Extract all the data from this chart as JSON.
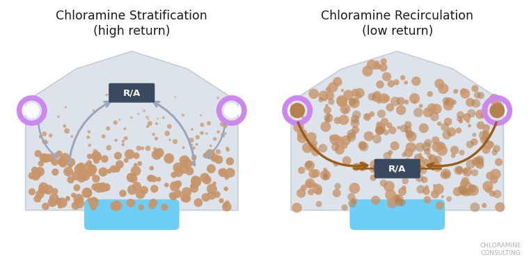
{
  "bg_color": "#ffffff",
  "building_color": "#dde3ea",
  "building_edge_color": "#c5ccd6",
  "pool_color": "#6dcff6",
  "dot_color_light": "#c8956a",
  "dot_color_mid": "#b5804e",
  "arrow_color_strat": "#9aa5bc",
  "arrow_color_recirc": "#9b5e1a",
  "vent_color": "#cc88ee",
  "vent_inner_color_left": "#ffffff",
  "vent_inner_color_right": "#c8956a",
  "RA_box_color": "#3a4a5e",
  "RA_text_color": "#ffffff",
  "title1_line1": "Chloramine Stratification",
  "title1_line2": "(high return)",
  "title2_line1": "Chloramine Recirculation",
  "title2_line2": "(low return)",
  "watermark_line1": "CHLORAMINE",
  "watermark_line2": "CONSULTING",
  "title_fontsize": 12.5,
  "watermark_fontsize": 6.5
}
